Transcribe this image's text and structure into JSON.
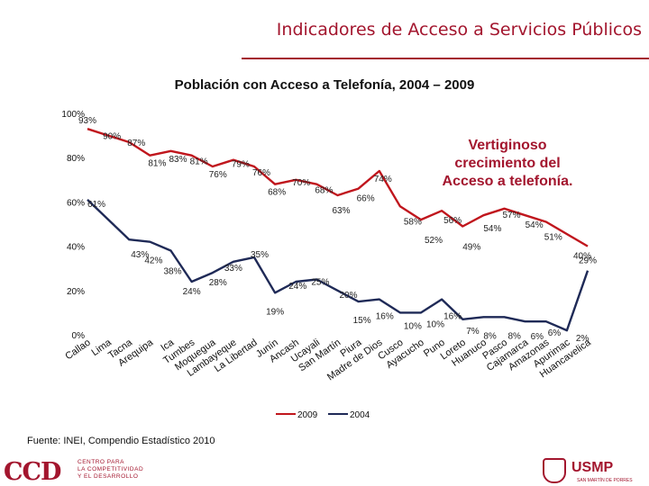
{
  "slide": {
    "title": "Indicadores de Acceso a Servicios Públicos",
    "source": "Fuente: INEI, Compendio Estadístico 2010",
    "callout": [
      "Vertiginoso",
      "crecimiento del",
      "Acceso a telefonía."
    ],
    "logo_left_mark": "CCD",
    "logo_left_text": [
      "CENTRO PARA",
      "LA COMPETITIVIDAD",
      "Y EL DESARROLLO"
    ],
    "logo_right_name": "USMP",
    "logo_right_sub": "SAN MARTÍN DE PORRES",
    "colors": {
      "accent": "#a3162e",
      "series_2009": "#c0161d",
      "series_2004": "#1f2a57"
    }
  },
  "chart_data": {
    "type": "line",
    "title": "Población con Acceso a Telefonía, 2004 – 2009",
    "xlabel": "",
    "ylabel": "",
    "ylim": [
      0,
      100
    ],
    "yticks": [
      "0%",
      "20%",
      "40%",
      "60%",
      "80%",
      "100%"
    ],
    "grid": false,
    "legend": "bottom",
    "categories": [
      "Callao",
      "Lima",
      "Tacna",
      "Arequipa",
      "Ica",
      "Tumbes",
      "Moquegua",
      "Lambayeque",
      "La Libertad",
      "Junín",
      "Ancash",
      "Ucayali",
      "San Martín",
      "Piura",
      "Madre de Dios",
      "Cusco",
      "Ayacucho",
      "Puno",
      "Loreto",
      "Huanuco",
      "Pasco",
      "Cajamarca",
      "Amazonas",
      "Apurimac",
      "Huancavelica"
    ],
    "series": [
      {
        "name": "2009",
        "values": [
          93,
          90,
          87,
          81,
          83,
          81,
          76,
          79,
          76,
          68,
          70,
          68,
          63,
          66,
          74,
          58,
          52,
          56,
          49,
          54,
          57,
          54,
          51,
          null,
          40
        ],
        "labels": [
          "93%",
          "90%",
          "87%",
          "81%",
          "83%",
          "81%",
          "76%",
          "79%",
          "76%",
          "68%",
          "70%",
          "68%",
          "63%",
          "66%",
          "74%",
          "58%",
          "52%",
          "56%",
          "49%",
          "54%",
          "57%",
          "54%",
          "51%",
          "",
          "40%"
        ]
      },
      {
        "name": "2004",
        "values": [
          61,
          null,
          43,
          42,
          38,
          24,
          28,
          33,
          35,
          19,
          24,
          25,
          20,
          15,
          16,
          10,
          10,
          16,
          7,
          8,
          8,
          6,
          6,
          2,
          29
        ],
        "labels": [
          "61%",
          "",
          "43%",
          "42%",
          "38%",
          "24%",
          "28%",
          "33%",
          "35%",
          "19%",
          "24%",
          "25%",
          "20%",
          "15%",
          "16%",
          "10%",
          "10%",
          "16%",
          "7%",
          "8%",
          "8%",
          "6%",
          "6%",
          "2%",
          "29%"
        ]
      }
    ]
  }
}
